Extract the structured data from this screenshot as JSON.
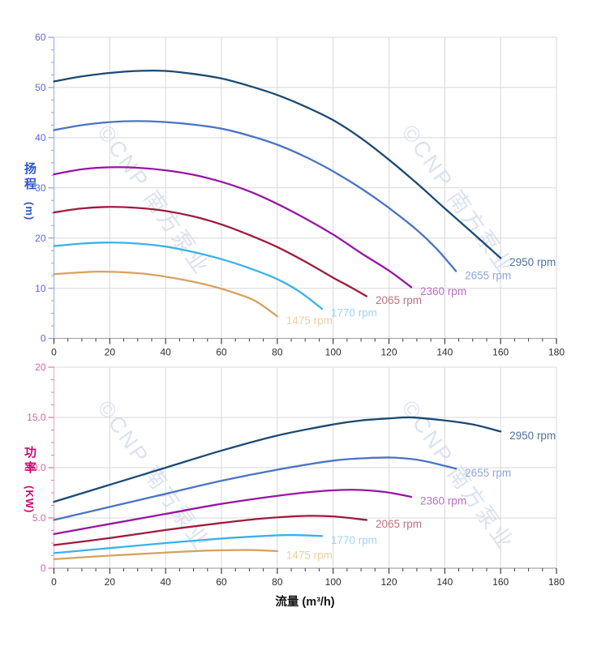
{
  "page": {
    "background": "#ffffff"
  },
  "watermark": {
    "text": "©CNP 南方泵业",
    "color": "#cdd7e8"
  },
  "colors": {
    "grid": "#d8d8d8",
    "plot_border": "#d8d8d8",
    "x_axis_line": "#a8a8a8",
    "x_tick_mark": "#3c3c3c",
    "x_tick_label": "#2d2d2d",
    "x_axis_title": "#141414"
  },
  "chart_data": [
    {
      "id": "head-chart",
      "type": "line",
      "title": "",
      "ylabel": "扬程",
      "ylabel_unit": "(m)",
      "ylabel_color": "#2f52d4",
      "tick_label_color": "#5a68d8",
      "axis_line_color": "#aeb9ee",
      "tick_mark_color": "#96a2e6",
      "xlim": [
        0,
        180
      ],
      "ylim": [
        0,
        60
      ],
      "x_major": 20,
      "x_minor": 5,
      "y_major": 10,
      "y_minor": 2.5,
      "grid": true,
      "x_tick_labels": [
        "0",
        "20",
        "40",
        "60",
        "80",
        "100",
        "120",
        "140",
        "160",
        "180"
      ],
      "y_tick_labels": [
        "0",
        "10",
        "20",
        "30",
        "40",
        "50",
        "60"
      ],
      "series": [
        {
          "name": "2950 rpm",
          "color": "#1a4a73",
          "label_color": "#50729e",
          "points": [
            [
              0,
              51.2
            ],
            [
              10,
              52.2
            ],
            [
              20,
              52.9
            ],
            [
              30,
              53.3
            ],
            [
              40,
              53.3
            ],
            [
              50,
              52.7
            ],
            [
              60,
              51.8
            ],
            [
              70,
              50.3
            ],
            [
              80,
              48.5
            ],
            [
              90,
              46.2
            ],
            [
              100,
              43.5
            ],
            [
              110,
              39.9
            ],
            [
              120,
              35.6
            ],
            [
              130,
              30.9
            ],
            [
              140,
              25.9
            ],
            [
              150,
              21.0
            ],
            [
              160,
              16.0
            ]
          ]
        },
        {
          "name": "2655 rpm",
          "color": "#4a74c4",
          "label_color": "#8fa6d9",
          "points": [
            [
              0,
              41.5
            ],
            [
              10,
              42.5
            ],
            [
              20,
              43.1
            ],
            [
              30,
              43.3
            ],
            [
              40,
              43.1
            ],
            [
              50,
              42.6
            ],
            [
              60,
              41.8
            ],
            [
              70,
              40.4
            ],
            [
              80,
              38.6
            ],
            [
              90,
              36.2
            ],
            [
              100,
              33.3
            ],
            [
              110,
              29.9
            ],
            [
              120,
              26.0
            ],
            [
              130,
              21.6
            ],
            [
              137,
              17.9
            ],
            [
              144,
              13.4
            ]
          ]
        },
        {
          "name": "2360 rpm",
          "color": "#9715a3",
          "label_color": "#b76cc5",
          "points": [
            [
              0,
              32.7
            ],
            [
              10,
              33.7
            ],
            [
              20,
              34.1
            ],
            [
              30,
              34.0
            ],
            [
              40,
              33.5
            ],
            [
              50,
              32.6
            ],
            [
              60,
              31.2
            ],
            [
              70,
              29.3
            ],
            [
              80,
              26.8
            ],
            [
              90,
              23.9
            ],
            [
              100,
              20.7
            ],
            [
              110,
              17.0
            ],
            [
              120,
              13.5
            ],
            [
              128,
              10.2
            ]
          ]
        },
        {
          "name": "2065 rpm",
          "color": "#9e1c3b",
          "label_color": "#bc7281",
          "points": [
            [
              0,
              25.1
            ],
            [
              10,
              25.9
            ],
            [
              20,
              26.2
            ],
            [
              30,
              26.0
            ],
            [
              40,
              25.4
            ],
            [
              50,
              24.3
            ],
            [
              60,
              22.7
            ],
            [
              70,
              20.6
            ],
            [
              80,
              18.2
            ],
            [
              90,
              15.3
            ],
            [
              100,
              12.1
            ],
            [
              106,
              10.3
            ],
            [
              112,
              8.4
            ]
          ]
        },
        {
          "name": "1770 rpm",
          "color": "#3ab2e9",
          "label_color": "#9ed3f2",
          "points": [
            [
              0,
              18.4
            ],
            [
              10,
              18.9
            ],
            [
              20,
              19.1
            ],
            [
              30,
              18.9
            ],
            [
              40,
              18.3
            ],
            [
              50,
              17.2
            ],
            [
              60,
              15.8
            ],
            [
              70,
              14.0
            ],
            [
              80,
              11.8
            ],
            [
              88,
              9.3
            ],
            [
              96,
              5.9
            ]
          ]
        },
        {
          "name": "1475 rpm",
          "color": "#d7a261",
          "label_color": "#eccfa2",
          "points": [
            [
              0,
              12.8
            ],
            [
              8,
              13.1
            ],
            [
              16,
              13.3
            ],
            [
              24,
              13.2
            ],
            [
              32,
              12.9
            ],
            [
              40,
              12.3
            ],
            [
              48,
              11.5
            ],
            [
              56,
              10.5
            ],
            [
              64,
              9.2
            ],
            [
              72,
              7.5
            ],
            [
              80,
              4.4
            ]
          ]
        }
      ]
    },
    {
      "id": "power-chart",
      "type": "line",
      "title": "",
      "xlabel": "流量 (m³/h)",
      "ylabel": "功率",
      "ylabel_unit": "(KW)",
      "ylabel_color": "#c40e72",
      "tick_label_color": "#d4659e",
      "axis_line_color": "#ecb9d4",
      "tick_mark_color": "#da7fb4",
      "xlim": [
        0,
        180
      ],
      "ylim": [
        0,
        20
      ],
      "x_major": 20,
      "x_minor": 5,
      "y_major": 5,
      "y_minor": 1.25,
      "grid": true,
      "x_tick_labels": [
        "0",
        "20",
        "40",
        "60",
        "80",
        "100",
        "120",
        "140",
        "160",
        "180"
      ],
      "y_tick_labels": [
        "0",
        "5.0",
        "10.0",
        "15.0",
        "20"
      ],
      "series": [
        {
          "name": "2950 rpm",
          "color": "#1a4a73",
          "label_color": "#50729e",
          "points": [
            [
              0,
              6.6
            ],
            [
              20,
              8.3
            ],
            [
              40,
              10.0
            ],
            [
              60,
              11.7
            ],
            [
              80,
              13.2
            ],
            [
              100,
              14.3
            ],
            [
              110,
              14.7
            ],
            [
              120,
              14.9
            ],
            [
              128,
              15.0
            ],
            [
              140,
              14.7
            ],
            [
              150,
              14.3
            ],
            [
              160,
              13.6
            ]
          ]
        },
        {
          "name": "2655 rpm",
          "color": "#4a74c4",
          "label_color": "#8fa6d9",
          "points": [
            [
              0,
              4.8
            ],
            [
              20,
              6.1
            ],
            [
              40,
              7.4
            ],
            [
              60,
              8.7
            ],
            [
              80,
              9.8
            ],
            [
              100,
              10.7
            ],
            [
              112,
              10.95
            ],
            [
              122,
              11.0
            ],
            [
              132,
              10.7
            ],
            [
              144,
              9.9
            ]
          ]
        },
        {
          "name": "2360 rpm",
          "color": "#9715a3",
          "label_color": "#b76cc5",
          "points": [
            [
              0,
              3.4
            ],
            [
              20,
              4.4
            ],
            [
              40,
              5.4
            ],
            [
              60,
              6.4
            ],
            [
              80,
              7.2
            ],
            [
              95,
              7.65
            ],
            [
              107,
              7.8
            ],
            [
              118,
              7.6
            ],
            [
              128,
              7.1
            ]
          ]
        },
        {
          "name": "2065 rpm",
          "color": "#9e1c3b",
          "label_color": "#bc7281",
          "points": [
            [
              0,
              2.3
            ],
            [
              20,
              3.0
            ],
            [
              40,
              3.8
            ],
            [
              60,
              4.5
            ],
            [
              75,
              4.95
            ],
            [
              90,
              5.2
            ],
            [
              100,
              5.15
            ],
            [
              112,
              4.8
            ]
          ]
        },
        {
          "name": "1770 rpm",
          "color": "#3ab2e9",
          "label_color": "#9ed3f2",
          "points": [
            [
              0,
              1.5
            ],
            [
              20,
              2.0
            ],
            [
              40,
              2.5
            ],
            [
              60,
              2.95
            ],
            [
              75,
              3.2
            ],
            [
              85,
              3.3
            ],
            [
              96,
              3.2
            ]
          ]
        },
        {
          "name": "1475 rpm",
          "color": "#d7a261",
          "label_color": "#eccfa2",
          "points": [
            [
              0,
              0.9
            ],
            [
              20,
              1.25
            ],
            [
              40,
              1.55
            ],
            [
              55,
              1.75
            ],
            [
              65,
              1.8
            ],
            [
              72,
              1.8
            ],
            [
              80,
              1.7
            ]
          ]
        }
      ]
    }
  ]
}
